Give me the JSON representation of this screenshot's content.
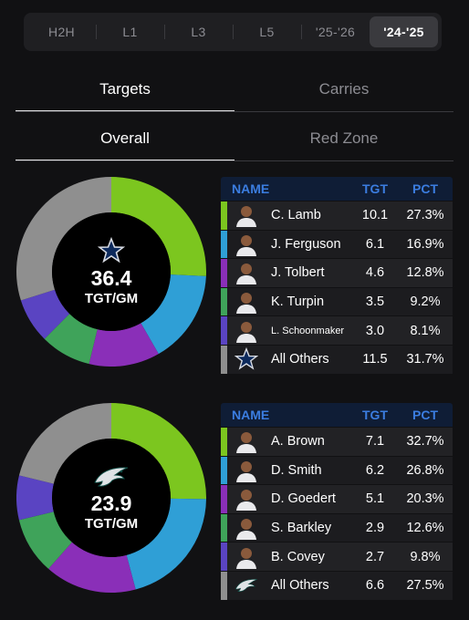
{
  "periods": {
    "tabs": [
      "H2H",
      "L1",
      "L3",
      "L5",
      "'25-'26",
      "'24-'25"
    ],
    "active": "'24-'25"
  },
  "stat_tabs": {
    "tabs": [
      "Targets",
      "Carries"
    ],
    "active": "Targets"
  },
  "zone_tabs": {
    "tabs": [
      "Overall",
      "Red Zone"
    ],
    "active": "Overall"
  },
  "table_headers": {
    "name": "NAME",
    "tgt": "TGT",
    "pct": "PCT"
  },
  "teams": [
    {
      "logo_icon": "cowboys-star-icon",
      "total": "36.4",
      "unit": "TGT/GM",
      "players": [
        {
          "name": "C. Lamb",
          "tgt": "10.1",
          "pct": "27.3%",
          "value": 27.3,
          "color": "#7cc61f",
          "icon": "player-avatar"
        },
        {
          "name": "J. Ferguson",
          "tgt": "6.1",
          "pct": "16.9%",
          "value": 16.9,
          "color": "#2f9fd6",
          "icon": "player-avatar"
        },
        {
          "name": "J. Tolbert",
          "tgt": "4.6",
          "pct": "12.8%",
          "value": 12.8,
          "color": "#8a2fb8",
          "icon": "player-avatar"
        },
        {
          "name": "K. Turpin",
          "tgt": "3.5",
          "pct": "9.2%",
          "value": 9.2,
          "color": "#3fa35a",
          "icon": "player-avatar"
        },
        {
          "name": "L. Schoonmaker",
          "tgt": "3.0",
          "pct": "8.1%",
          "value": 8.1,
          "color": "#5a44c2",
          "icon": "player-avatar"
        },
        {
          "name": "All Others",
          "tgt": "11.5",
          "pct": "31.7%",
          "value": 31.7,
          "color": "#8f8f8f",
          "icon": "cowboys-star-icon"
        }
      ]
    },
    {
      "logo_icon": "eagles-logo-icon",
      "total": "23.9",
      "unit": "TGT/GM",
      "players": [
        {
          "name": "A. Brown",
          "tgt": "7.1",
          "pct": "32.7%",
          "value": 32.7,
          "color": "#7cc61f",
          "icon": "player-avatar"
        },
        {
          "name": "D. Smith",
          "tgt": "6.2",
          "pct": "26.8%",
          "value": 26.8,
          "color": "#2f9fd6",
          "icon": "player-avatar"
        },
        {
          "name": "D. Goedert",
          "tgt": "5.1",
          "pct": "20.3%",
          "value": 20.3,
          "color": "#8a2fb8",
          "icon": "player-avatar"
        },
        {
          "name": "S. Barkley",
          "tgt": "2.9",
          "pct": "12.6%",
          "value": 12.6,
          "color": "#3fa35a",
          "icon": "player-avatar"
        },
        {
          "name": "B. Covey",
          "tgt": "2.7",
          "pct": "9.8%",
          "value": 9.8,
          "color": "#5a44c2",
          "icon": "player-avatar"
        },
        {
          "name": "All Others",
          "tgt": "6.6",
          "pct": "27.5%",
          "value": 27.5,
          "color": "#8f8f8f",
          "icon": "eagles-logo-icon"
        }
      ]
    }
  ]
}
